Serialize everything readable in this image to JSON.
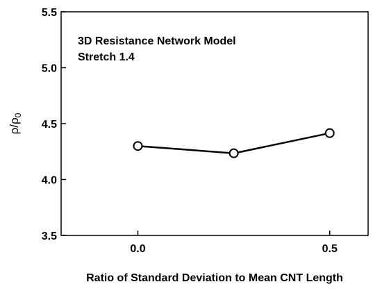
{
  "chart_data": {
    "type": "line",
    "title": "",
    "annotations": [
      "3D Resistance Network Model",
      "Stretch 1.4"
    ],
    "xlabel": "Ratio of Standard Deviation to Mean CNT Length",
    "ylabel": "ρ/ρ",
    "ylabel_subscript": "0",
    "xlim": [
      -0.2,
      0.6
    ],
    "ylim": [
      3.5,
      5.5
    ],
    "xticks": [
      0.0,
      0.5
    ],
    "xtick_labels": [
      "0.0",
      "0.5"
    ],
    "yticks": [
      3.5,
      4.0,
      4.5,
      5.0,
      5.5
    ],
    "ytick_labels": [
      "3.5",
      "4.0",
      "4.5",
      "5.0",
      "5.5"
    ],
    "grid": false,
    "legend": "none",
    "marker": "open-circle",
    "series": [
      {
        "x": [
          0.0,
          0.25,
          0.5
        ],
        "y": [
          4.3,
          4.235,
          4.415
        ]
      }
    ]
  }
}
